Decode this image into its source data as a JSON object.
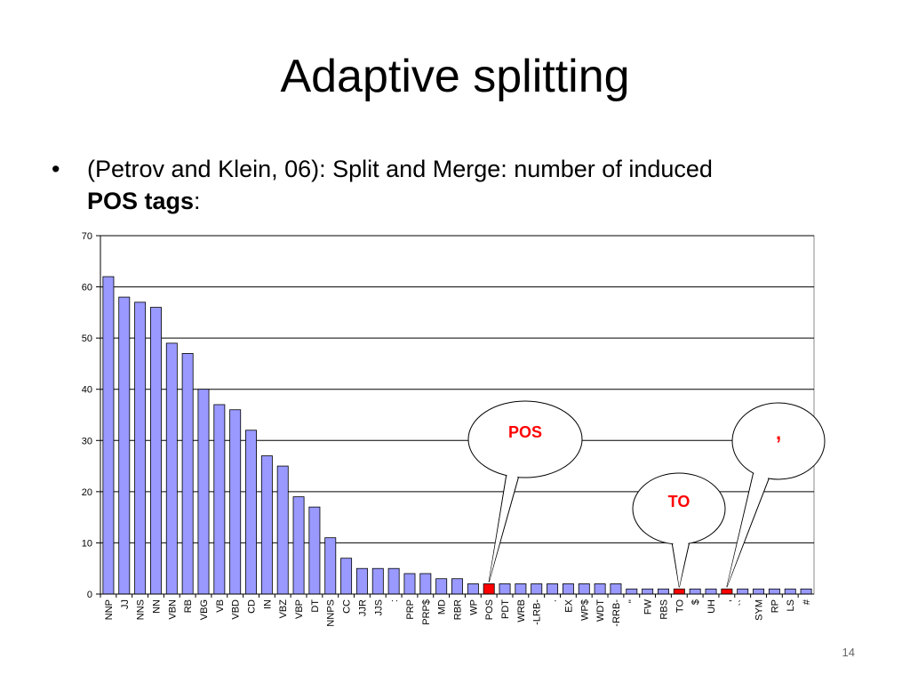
{
  "slide": {
    "title": "Adaptive splitting",
    "bullet_marker": "•",
    "bullet_line1": "(Petrov and Klein, 06): Split and Merge: number of induced",
    "bullet_bold": "POS tags",
    "bullet_tail": ":",
    "slide_number": "14"
  },
  "colors": {
    "bar": "#9999ff",
    "bar_highlight": "#ff0000",
    "callout_text": "#ff0000"
  },
  "chart_data": {
    "type": "bar",
    "categories": [
      "NNP",
      "JJ",
      "NNS",
      "NN",
      "VBN",
      "RB",
      "VBG",
      "VB",
      "VBD",
      "CD",
      "IN",
      "VBZ",
      "VBP",
      "DT",
      "NNPS",
      "CC",
      "JJR",
      "JJS",
      ":",
      "PRP",
      "PRP$",
      "MD",
      "RBR",
      "WP",
      "POS",
      "PDT",
      "WRB",
      "-LRB-",
      ".",
      "EX",
      "WP$",
      "WDT",
      "-RRB-",
      "''",
      "FW",
      "RBS",
      "TO",
      "$",
      "UH",
      ",",
      "``",
      "SYM",
      "RP",
      "LS",
      "#"
    ],
    "values": [
      62,
      58,
      57,
      56,
      49,
      47,
      40,
      37,
      36,
      32,
      27,
      25,
      19,
      17,
      11,
      7,
      5,
      5,
      5,
      4,
      4,
      3,
      3,
      2,
      2,
      2,
      2,
      2,
      2,
      2,
      2,
      2,
      2,
      1,
      1,
      1,
      1,
      1,
      1,
      1,
      1,
      1,
      1,
      1,
      1
    ],
    "highlighted": [
      "POS",
      "TO",
      ","
    ],
    "ylim": [
      0,
      70
    ],
    "yticks": [
      0,
      10,
      20,
      30,
      40,
      50,
      60,
      70
    ],
    "grid": true,
    "annotations": [
      {
        "label": "POS",
        "target": "POS"
      },
      {
        "label": "TO",
        "target": "TO"
      },
      {
        "label": ",",
        "target": ","
      }
    ]
  }
}
